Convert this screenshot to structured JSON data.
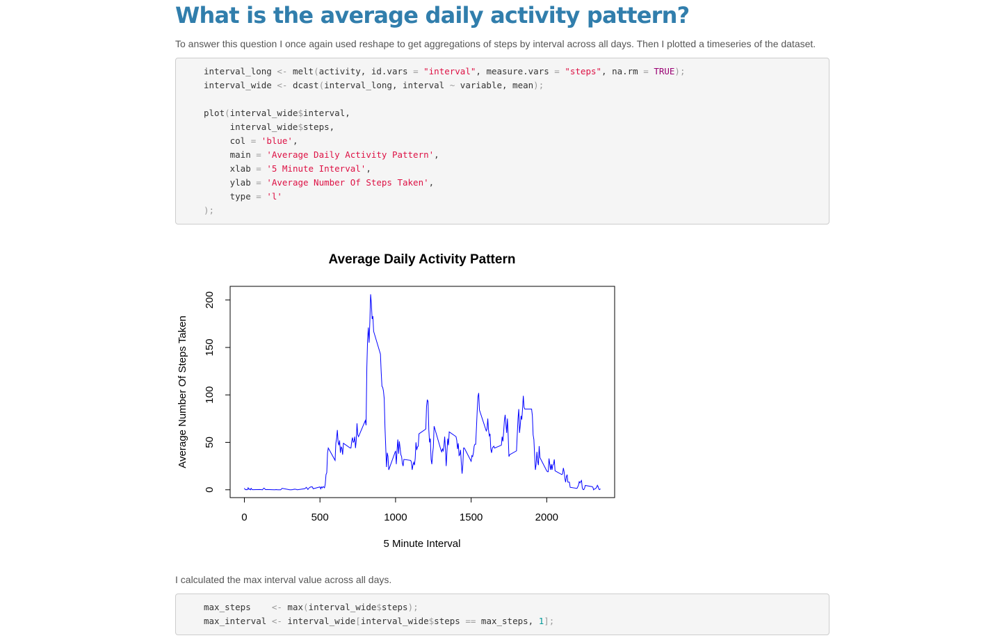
{
  "header": {
    "title": "What is the average daily activity pattern?"
  },
  "paragraphs": [
    "To answer this question I once again used reshape to get aggregations of steps by interval across all days. Then I plotted a timeseries of the dataset.",
    "I calculated the max interval value across all days."
  ],
  "code_blocks": [
    {
      "groups": [
        [
          "interval_long <- melt(activity, id.vars = \"interval\", measure.vars = \"steps\", na.rm = TRUE);",
          "interval_wide <- dcast(interval_long, interval ~ variable, mean);"
        ],
        [
          "plot(interval_wide$interval,",
          "     interval_wide$steps,",
          "     col = 'blue',",
          "     main = 'Average Daily Activity Pattern',",
          "     xlab = '5 Minute Interval',",
          "     ylab = 'Average Number Of Steps Taken',",
          "     type = 'l'",
          ");"
        ]
      ]
    },
    {
      "groups": [
        [
          "max_steps    <- max(interval_wide$steps);",
          "max_interval <- interval_wide[interval_wide$steps == max_steps, 1];"
        ]
      ]
    }
  ],
  "chart_data": {
    "type": "line",
    "title": "Average Daily Activity Pattern",
    "x_label": "5 Minute Interval",
    "y_label": "Average Number Of Steps Taken",
    "x": [
      0,
      5,
      10,
      15,
      20,
      25,
      30,
      35,
      40,
      45,
      50,
      55,
      100,
      110,
      120,
      125,
      130,
      140,
      150,
      200,
      210,
      220,
      230,
      240,
      250,
      300,
      310,
      320,
      330,
      340,
      350,
      400,
      410,
      420,
      430,
      440,
      450,
      455,
      500,
      505,
      510,
      515,
      520,
      525,
      530,
      535,
      540,
      545,
      550,
      555,
      600,
      605,
      610,
      615,
      620,
      625,
      630,
      635,
      640,
      645,
      650,
      655,
      700,
      705,
      710,
      715,
      720,
      725,
      730,
      735,
      740,
      745,
      750,
      755,
      800,
      805,
      810,
      815,
      820,
      825,
      830,
      835,
      840,
      845,
      850,
      855,
      900,
      905,
      910,
      915,
      920,
      925,
      930,
      935,
      940,
      945,
      950,
      955,
      1000,
      1005,
      1010,
      1015,
      1020,
      1025,
      1030,
      1035,
      1040,
      1045,
      1050,
      1055,
      1100,
      1105,
      1110,
      1115,
      1120,
      1125,
      1130,
      1135,
      1140,
      1145,
      1150,
      1155,
      1200,
      1205,
      1210,
      1215,
      1220,
      1225,
      1230,
      1235,
      1240,
      1245,
      1250,
      1255,
      1300,
      1305,
      1310,
      1315,
      1320,
      1325,
      1330,
      1335,
      1340,
      1345,
      1350,
      1355,
      1400,
      1405,
      1410,
      1415,
      1420,
      1425,
      1430,
      1435,
      1440,
      1445,
      1450,
      1455,
      1500,
      1505,
      1510,
      1515,
      1520,
      1525,
      1530,
      1535,
      1540,
      1545,
      1550,
      1555,
      1600,
      1605,
      1610,
      1615,
      1620,
      1625,
      1630,
      1635,
      1640,
      1645,
      1650,
      1655,
      1700,
      1705,
      1710,
      1715,
      1720,
      1725,
      1730,
      1735,
      1740,
      1745,
      1750,
      1755,
      1800,
      1805,
      1810,
      1815,
      1820,
      1825,
      1830,
      1835,
      1840,
      1845,
      1850,
      1855,
      1900,
      1905,
      1910,
      1915,
      1920,
      1925,
      1930,
      1935,
      1940,
      1945,
      1950,
      1955,
      2000,
      2005,
      2010,
      2015,
      2020,
      2025,
      2030,
      2035,
      2040,
      2045,
      2050,
      2055,
      2100,
      2105,
      2110,
      2115,
      2120,
      2125,
      2130,
      2135,
      2140,
      2145,
      2150,
      2155,
      2200,
      2205,
      2210,
      2215,
      2220,
      2225,
      2230,
      2235,
      2240,
      2245,
      2250,
      2255,
      2300,
      2305,
      2310,
      2315,
      2320,
      2325,
      2330,
      2335,
      2340,
      2345,
      2350,
      2355
    ],
    "series": [
      {
        "color": "#0000ff",
        "values": [
          1.7,
          0.3,
          0.1,
          0.2,
          0.1,
          2.1,
          0.5,
          0.9,
          0,
          1.5,
          0.3,
          0.1,
          0.3,
          0.2,
          0,
          1.1,
          1.8,
          0.2,
          0.3,
          0,
          0.2,
          0,
          0,
          0,
          1.5,
          0,
          0,
          0.2,
          0.6,
          0.5,
          0,
          1.2,
          2.6,
          0.3,
          2.3,
          3.1,
          3,
          1.1,
          3,
          1,
          3,
          2,
          3.3,
          2.9,
          2.1,
          6,
          16,
          18,
          39,
          44,
          31,
          49,
          54,
          63,
          50,
          47,
          52,
          39,
          45,
          44,
          37,
          49,
          44,
          44,
          51,
          55,
          50,
          51,
          56,
          44,
          52,
          70,
          58,
          56,
          73,
          68,
          129,
          158,
          171,
          155,
          177,
          206,
          196,
          180,
          183,
          167,
          143,
          124,
          109,
          108,
          104,
          96,
          66,
          45,
          24,
          39,
          35,
          21,
          41,
          27,
          42,
          53,
          38,
          51,
          44,
          37,
          35,
          28,
          25,
          32,
          31,
          29,
          21,
          26,
          29,
          26,
          33,
          50,
          42,
          45,
          46,
          59,
          64,
          88,
          95,
          93,
          63,
          50,
          54,
          32,
          27,
          38,
          45,
          67,
          42,
          40,
          43,
          41,
          46,
          56,
          43,
          25,
          40,
          54,
          47,
          61,
          56,
          52,
          43,
          49,
          36,
          37,
          42,
          28,
          17,
          26,
          44,
          44,
          30,
          36,
          35,
          39,
          46,
          48,
          48,
          65,
          83,
          98,
          102,
          84,
          62,
          64,
          75,
          63,
          57,
          59,
          43,
          39,
          44,
          45,
          46,
          44,
          47,
          56,
          51,
          61,
          73,
          79,
          69,
          60,
          75,
          57,
          35,
          37,
          41,
          58,
          75,
          85,
          60,
          68,
          78,
          74,
          85,
          99,
          87,
          85,
          85,
          78,
          58,
          53,
          36,
          21,
          27,
          40,
          30,
          26,
          46,
          34,
          20,
          19,
          19,
          33,
          27,
          21,
          27,
          21,
          26,
          27,
          32,
          20,
          16,
          17,
          23,
          19,
          12,
          8,
          14,
          16,
          8,
          8,
          8,
          2.6,
          1.5,
          3,
          4.8,
          8.5,
          7.2,
          8.7,
          9.8,
          2.2,
          0.3,
          0.1,
          1.6,
          4.6,
          3.3,
          2.8,
          0,
          0.8,
          1,
          1.6,
          2.6,
          4.7,
          3.3,
          0.6,
          0.2,
          1.1
        ]
      }
    ],
    "xlim": [
      -94.2,
      2449.2
    ],
    "ylim": [
      -8.25,
      214.4
    ],
    "xticks": [
      0,
      500,
      1000,
      1500,
      2000
    ],
    "yticks": [
      0,
      50,
      100,
      150,
      200
    ]
  }
}
